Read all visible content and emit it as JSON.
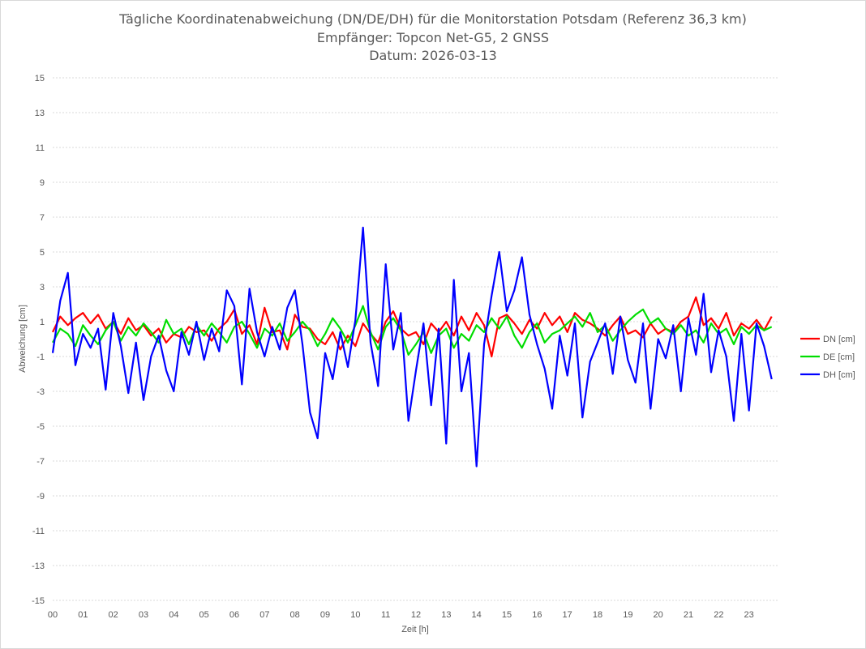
{
  "chart_data": {
    "type": "line",
    "title_lines": [
      "Tägliche Koordinatenabweichung (DN/DE/DH) für die Monitorstation Potsdam (Referenz 36,3 km)",
      "Empfänger: Topcon Net-G5, 2 GNSS",
      "Datum: 2026-03-13"
    ],
    "xlabel": "Zeit [h]",
    "ylabel": "Abweichung [cm]",
    "xlim": [
      0,
      24
    ],
    "ylim": [
      -15,
      15
    ],
    "y_ticks": [
      15,
      13,
      11,
      9,
      7,
      5,
      3,
      1,
      -1,
      -3,
      -5,
      -7,
      -9,
      -11,
      -13,
      -15
    ],
    "x_tick_labels": [
      "00",
      "01",
      "02",
      "03",
      "04",
      "05",
      "06",
      "07",
      "08",
      "09",
      "10",
      "11",
      "12",
      "13",
      "14",
      "15",
      "16",
      "17",
      "18",
      "19",
      "20",
      "21",
      "22",
      "23"
    ],
    "grid": true,
    "legend_position": "right",
    "series": [
      {
        "name": "DN [cm]",
        "color": "#ff0000",
        "x": [
          0,
          0.25,
          0.5,
          0.75,
          1,
          1.25,
          1.5,
          1.75,
          2,
          2.25,
          2.5,
          2.75,
          3,
          3.25,
          3.5,
          3.75,
          4,
          4.25,
          4.5,
          4.75,
          5,
          5.25,
          5.5,
          5.75,
          6,
          6.25,
          6.5,
          6.75,
          7,
          7.25,
          7.5,
          7.75,
          8,
          8.25,
          8.5,
          8.75,
          9,
          9.25,
          9.5,
          9.75,
          10,
          10.25,
          10.5,
          10.75,
          11,
          11.25,
          11.5,
          11.75,
          12,
          12.25,
          12.5,
          12.75,
          13,
          13.25,
          13.5,
          13.75,
          14,
          14.25,
          14.5,
          14.75,
          15,
          15.25,
          15.5,
          15.75,
          16,
          16.25,
          16.5,
          16.75,
          17,
          17.25,
          17.5,
          17.75,
          18,
          18.25,
          18.5,
          18.75,
          19,
          19.25,
          19.5,
          19.75,
          20,
          20.25,
          20.5,
          20.75,
          21,
          21.25,
          21.5,
          21.75,
          22,
          22.25,
          22.5,
          22.75,
          23,
          23.25,
          23.5,
          23.75
        ],
        "values": [
          0.4,
          1.3,
          0.8,
          1.2,
          1.5,
          0.9,
          1.4,
          0.6,
          1.0,
          0.3,
          1.2,
          0.5,
          0.8,
          0.2,
          0.6,
          -0.2,
          0.3,
          0.1,
          0.7,
          0.4,
          0.5,
          -0.1,
          0.6,
          1.0,
          1.7,
          0.3,
          0.8,
          -0.3,
          1.8,
          0.4,
          0.5,
          -0.6,
          1.4,
          0.7,
          0.6,
          0.0,
          -0.3,
          0.4,
          -0.6,
          0.2,
          -0.4,
          0.9,
          0.3,
          -0.2,
          1.0,
          1.6,
          0.6,
          0.2,
          0.4,
          -0.3,
          0.9,
          0.4,
          1.0,
          0.2,
          1.3,
          0.5,
          1.5,
          0.8,
          -1.0,
          1.2,
          1.4,
          0.9,
          0.3,
          1.1,
          0.6,
          1.5,
          0.8,
          1.3,
          0.4,
          1.5,
          1.1,
          0.9,
          0.6,
          0.2,
          0.8,
          1.3,
          0.3,
          0.5,
          0.1,
          0.9,
          0.3,
          0.6,
          0.4,
          1.0,
          1.3,
          2.4,
          0.8,
          1.2,
          0.6,
          1.5,
          0.2,
          0.9,
          0.6,
          1.1,
          0.5,
          1.3
        ]
      },
      {
        "name": "DE [cm]",
        "color": "#00dd00",
        "x": [
          0,
          0.25,
          0.5,
          0.75,
          1,
          1.25,
          1.5,
          1.75,
          2,
          2.25,
          2.5,
          2.75,
          3,
          3.25,
          3.5,
          3.75,
          4,
          4.25,
          4.5,
          4.75,
          5,
          5.25,
          5.5,
          5.75,
          6,
          6.25,
          6.5,
          6.75,
          7,
          7.25,
          7.5,
          7.75,
          8,
          8.25,
          8.5,
          8.75,
          9,
          9.25,
          9.5,
          9.75,
          10,
          10.25,
          10.5,
          10.75,
          11,
          11.25,
          11.5,
          11.75,
          12,
          12.25,
          12.5,
          12.75,
          13,
          13.25,
          13.5,
          13.75,
          14,
          14.25,
          14.5,
          14.75,
          15,
          15.25,
          15.5,
          15.75,
          16,
          16.25,
          16.5,
          16.75,
          17,
          17.25,
          17.5,
          17.75,
          18,
          18.25,
          18.5,
          18.75,
          19,
          19.25,
          19.5,
          19.75,
          20,
          20.25,
          20.5,
          20.75,
          21,
          21.25,
          21.5,
          21.75,
          22,
          22.25,
          22.5,
          22.75,
          23,
          23.25,
          23.5,
          23.75
        ],
        "values": [
          -0.2,
          0.6,
          0.3,
          -0.4,
          0.8,
          0.2,
          -0.3,
          0.5,
          1.0,
          -0.1,
          0.7,
          0.2,
          0.9,
          0.4,
          -0.2,
          1.1,
          0.3,
          0.6,
          -0.3,
          0.8,
          0.2,
          0.9,
          0.4,
          -0.2,
          0.7,
          1.0,
          0.3,
          -0.5,
          0.6,
          0.2,
          0.9,
          -0.1,
          0.4,
          1.0,
          0.5,
          -0.4,
          0.3,
          1.2,
          0.6,
          -0.2,
          0.8,
          1.9,
          0.4,
          -0.6,
          0.7,
          1.2,
          0.5,
          -0.9,
          -0.3,
          0.4,
          -0.8,
          0.2,
          0.6,
          -0.5,
          0.3,
          -0.1,
          0.8,
          0.4,
          1.2,
          0.6,
          1.3,
          0.2,
          -0.5,
          0.4,
          0.9,
          -0.2,
          0.3,
          0.5,
          0.9,
          1.3,
          0.7,
          1.5,
          0.4,
          0.8,
          -0.1,
          0.5,
          1.0,
          1.4,
          1.7,
          0.9,
          1.2,
          0.6,
          0.3,
          0.8,
          0.2,
          0.5,
          -0.2,
          0.9,
          0.3,
          0.6,
          -0.3,
          0.7,
          0.3,
          0.8,
          0.5,
          0.7
        ]
      },
      {
        "name": "DH [cm]",
        "color": "#0000ff",
        "x": [
          0,
          0.25,
          0.5,
          0.75,
          1,
          1.25,
          1.5,
          1.75,
          2,
          2.25,
          2.5,
          2.75,
          3,
          3.25,
          3.5,
          3.75,
          4,
          4.25,
          4.5,
          4.75,
          5,
          5.25,
          5.5,
          5.75,
          6,
          6.25,
          6.5,
          6.75,
          7,
          7.25,
          7.5,
          7.75,
          8,
          8.25,
          8.5,
          8.75,
          9,
          9.25,
          9.5,
          9.75,
          10,
          10.25,
          10.5,
          10.75,
          11,
          11.25,
          11.5,
          11.75,
          12,
          12.25,
          12.5,
          12.75,
          13,
          13.25,
          13.5,
          13.75,
          14,
          14.25,
          14.5,
          14.75,
          15,
          15.25,
          15.5,
          15.75,
          16,
          16.25,
          16.5,
          16.75,
          17,
          17.25,
          17.5,
          17.75,
          18,
          18.25,
          18.5,
          18.75,
          19,
          19.25,
          19.5,
          19.75,
          20,
          20.25,
          20.5,
          20.75,
          21,
          21.25,
          21.5,
          21.75,
          22,
          22.25,
          22.5,
          22.75,
          23,
          23.25,
          23.5,
          23.75
        ],
        "values": [
          -0.8,
          2.2,
          3.8,
          -1.5,
          0.3,
          -0.5,
          0.6,
          -2.9,
          1.5,
          -0.4,
          -3.1,
          -0.2,
          -3.5,
          -1.0,
          0.2,
          -1.8,
          -3.0,
          0.4,
          -0.9,
          1.0,
          -1.2,
          0.6,
          -0.7,
          2.8,
          1.9,
          -2.6,
          2.9,
          0.4,
          -1.0,
          0.7,
          -0.6,
          1.8,
          2.8,
          -0.3,
          -4.2,
          -5.7,
          -0.8,
          -2.3,
          0.4,
          -1.6,
          1.1,
          6.4,
          -0.2,
          -2.7,
          4.3,
          -0.6,
          1.5,
          -4.7,
          -1.8,
          0.9,
          -3.8,
          0.6,
          -6.0,
          3.4,
          -3.0,
          -0.8,
          -7.3,
          -0.3,
          2.5,
          5.0,
          1.6,
          2.8,
          4.7,
          1.4,
          -0.3,
          -1.7,
          -4.0,
          0.2,
          -2.1,
          0.9,
          -4.5,
          -1.3,
          -0.2,
          0.9,
          -2.0,
          1.3,
          -1.2,
          -2.5,
          0.9,
          -4.0,
          0.0,
          -1.1,
          0.8,
          -3.0,
          1.2,
          -0.9,
          2.6,
          -1.9,
          0.5,
          -1.0,
          -4.7,
          0.3,
          -4.1,
          0.9,
          -0.4,
          -2.3
        ]
      }
    ]
  }
}
